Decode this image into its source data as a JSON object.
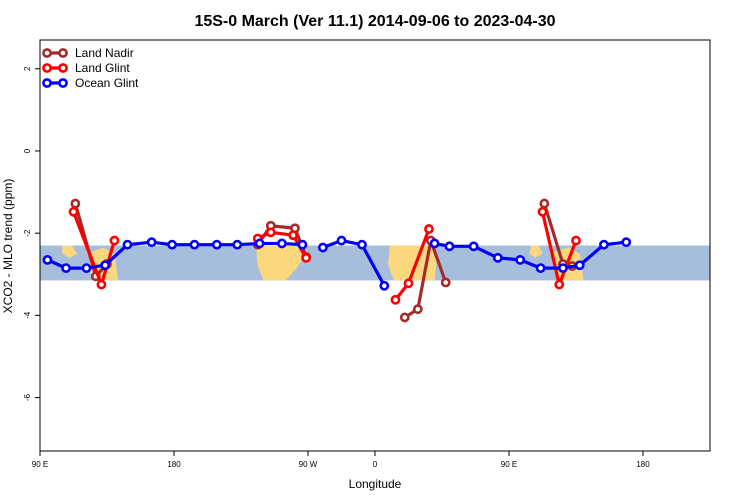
{
  "chart_data": {
    "type": "line",
    "title": "15S-0 March (Ver 11.1)   2014-09-06 to 2023-04-30",
    "xlabel": "Longitude",
    "ylabel": "XCO2 - MLO trend (ppm)",
    "xlim": [
      -180,
      180
    ],
    "ylim": [
      -7.3,
      2.7
    ],
    "xticks": [
      {
        "value": -180,
        "label": "90 E"
      },
      {
        "value": -108,
        "label": "180"
      },
      {
        "value": -36,
        "label": "90 W"
      },
      {
        "value": 0,
        "label": "0"
      },
      {
        "value": 72,
        "label": "90 E"
      },
      {
        "value": 144,
        "label": "180"
      }
    ],
    "yticks": [
      {
        "value": 2,
        "label": "2"
      },
      {
        "value": 0,
        "label": "0"
      },
      {
        "value": -2,
        "label": "-2"
      },
      {
        "value": -4,
        "label": "-4"
      },
      {
        "value": -6,
        "label": "-6"
      }
    ],
    "map_band": {
      "y_min": -3.15,
      "y_max": -2.3,
      "ocean_color": "#a7bddc",
      "land_color": "#fbd87e"
    },
    "legend_position": "top-left",
    "series": [
      {
        "name": "Land Nadir",
        "color": "#a52a2a",
        "segments": [
          [
            [
              -161,
              -1.28
            ],
            [
              -150,
              -3.05
            ],
            [
              -144,
              -2.75
            ]
          ],
          [
            [
              -63,
              -2.28
            ],
            [
              -56,
              -1.82
            ],
            [
              -43,
              -1.88
            ],
            [
              -37,
              -2.58
            ]
          ],
          [
            [
              16,
              -4.05
            ],
            [
              23,
              -3.85
            ],
            [
              30,
              -2.18
            ],
            [
              38,
              -3.2
            ]
          ],
          [
            [
              91,
              -1.28
            ],
            [
              101,
              -2.75
            ],
            [
              106,
              -2.8
            ]
          ]
        ]
      },
      {
        "name": "Land Glint",
        "color": "#ff0000",
        "segments": [
          [
            [
              -162,
              -1.48
            ],
            [
              -147,
              -3.25
            ],
            [
              -140,
              -2.18
            ]
          ],
          [
            [
              -63,
              -2.13
            ],
            [
              -56,
              -1.98
            ],
            [
              -44,
              -2.05
            ],
            [
              -37,
              -2.6
            ]
          ],
          [
            [
              11,
              -3.62
            ],
            [
              18,
              -3.22
            ],
            [
              29,
              -1.9
            ]
          ],
          [
            [
              90,
              -1.48
            ],
            [
              99,
              -3.25
            ],
            [
              108,
              -2.18
            ]
          ]
        ]
      },
      {
        "name": "Ocean Glint",
        "color": "#0000ff",
        "segments": [
          [
            [
              -176,
              -2.65
            ],
            [
              -166,
              -2.85
            ],
            [
              -155,
              -2.85
            ],
            [
              -145,
              -2.78
            ],
            [
              -133,
              -2.28
            ],
            [
              -120,
              -2.22
            ],
            [
              -109,
              -2.28
            ],
            [
              -97,
              -2.28
            ],
            [
              -85,
              -2.28
            ],
            [
              -74,
              -2.28
            ],
            [
              -62,
              -2.25
            ],
            [
              -50,
              -2.25
            ],
            [
              -39,
              -2.28
            ]
          ],
          [
            [
              -28,
              -2.35
            ],
            [
              -18,
              -2.18
            ],
            [
              -7,
              -2.28
            ],
            [
              5,
              -3.28
            ]
          ],
          [
            [
              32,
              -2.25
            ],
            [
              40,
              -2.32
            ],
            [
              53,
              -2.32
            ],
            [
              66,
              -2.6
            ],
            [
              78,
              -2.65
            ],
            [
              89,
              -2.85
            ],
            [
              101,
              -2.85
            ],
            [
              110,
              -2.78
            ],
            [
              123,
              -2.28
            ],
            [
              135,
              -2.22
            ]
          ]
        ]
      }
    ]
  }
}
